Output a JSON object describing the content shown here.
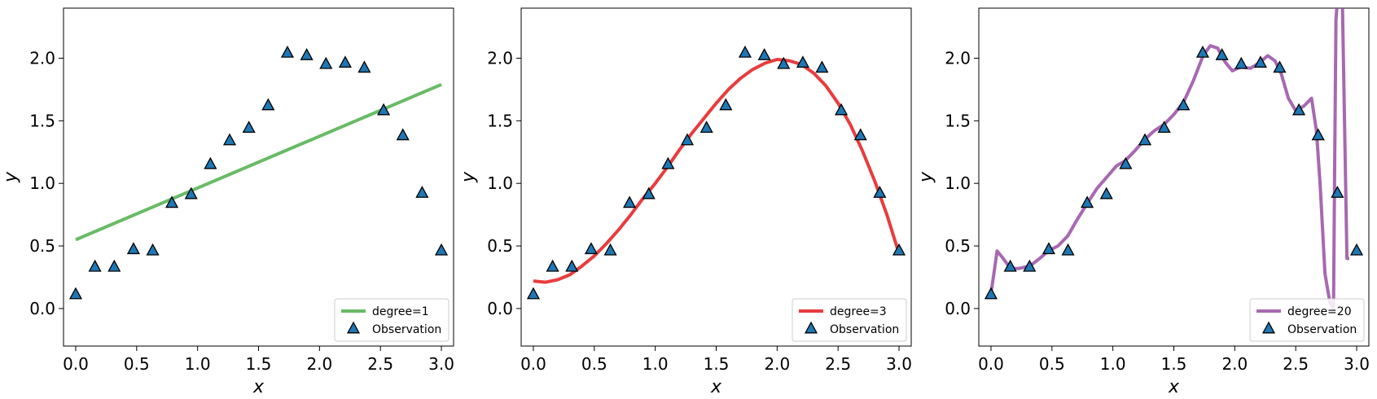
{
  "chart_data": [
    {
      "type": "line",
      "xlabel": "x",
      "ylabel": "y",
      "xlim": [
        -0.1,
        3.1
      ],
      "ylim": [
        -0.3,
        2.4
      ],
      "xticks": [
        "0.0",
        "0.5",
        "1.0",
        "1.5",
        "2.0",
        "2.5",
        "3.0"
      ],
      "yticks": [
        "0.0",
        "0.5",
        "1.0",
        "1.5",
        "2.0"
      ],
      "grid": false,
      "legend_position": "lower-right",
      "series": [
        {
          "name": "degree=1",
          "kind": "line",
          "color": "#4daf4a",
          "x": [
            0.0,
            3.0
          ],
          "y": [
            0.55,
            1.79
          ]
        },
        {
          "name": "Observation",
          "kind": "scatter",
          "marker": "triangle",
          "color": "#1f77b4",
          "x": [
            0.0,
            0.158,
            0.316,
            0.474,
            0.632,
            0.789,
            0.947,
            1.105,
            1.263,
            1.421,
            1.579,
            1.737,
            1.895,
            2.053,
            2.211,
            2.368,
            2.526,
            2.684,
            2.842,
            3.0
          ],
          "y": [
            0.11,
            0.33,
            0.33,
            0.47,
            0.46,
            0.84,
            0.91,
            1.15,
            1.34,
            1.44,
            1.62,
            2.04,
            2.02,
            1.95,
            1.96,
            1.92,
            1.58,
            1.38,
            0.92,
            0.46
          ]
        }
      ]
    },
    {
      "type": "line",
      "xlabel": "x",
      "ylabel": "y",
      "xlim": [
        -0.1,
        3.1
      ],
      "ylim": [
        -0.3,
        2.4
      ],
      "xticks": [
        "0.0",
        "0.5",
        "1.0",
        "1.5",
        "2.0",
        "2.5",
        "3.0"
      ],
      "yticks": [
        "0.0",
        "0.5",
        "1.0",
        "1.5",
        "2.0"
      ],
      "grid": false,
      "legend_position": "lower-right",
      "series": [
        {
          "name": "degree=3",
          "kind": "line",
          "color": "#e41a1c",
          "x": [
            0.0,
            0.1,
            0.2,
            0.3,
            0.4,
            0.5,
            0.6,
            0.7,
            0.8,
            0.9,
            1.0,
            1.1,
            1.2,
            1.3,
            1.4,
            1.5,
            1.6,
            1.7,
            1.8,
            1.9,
            2.0,
            2.1,
            2.2,
            2.3,
            2.4,
            2.5,
            2.6,
            2.7,
            2.8,
            2.9,
            3.0
          ],
          "y": [
            0.22,
            0.21,
            0.23,
            0.27,
            0.34,
            0.42,
            0.52,
            0.63,
            0.75,
            0.88,
            1.0,
            1.13,
            1.27,
            1.4,
            1.52,
            1.64,
            1.75,
            1.84,
            1.91,
            1.96,
            1.99,
            1.98,
            1.95,
            1.88,
            1.78,
            1.64,
            1.47,
            1.26,
            1.02,
            0.75,
            0.44
          ]
        },
        {
          "name": "Observation",
          "kind": "scatter",
          "marker": "triangle",
          "color": "#1f77b4",
          "x": [
            0.0,
            0.158,
            0.316,
            0.474,
            0.632,
            0.789,
            0.947,
            1.105,
            1.263,
            1.421,
            1.579,
            1.737,
            1.895,
            2.053,
            2.211,
            2.368,
            2.526,
            2.684,
            2.842,
            3.0
          ],
          "y": [
            0.11,
            0.33,
            0.33,
            0.47,
            0.46,
            0.84,
            0.91,
            1.15,
            1.34,
            1.44,
            1.62,
            2.04,
            2.02,
            1.95,
            1.96,
            1.92,
            1.58,
            1.38,
            0.92,
            0.46
          ]
        }
      ]
    },
    {
      "type": "line",
      "xlabel": "x",
      "ylabel": "y",
      "xlim": [
        -0.1,
        3.1
      ],
      "ylim": [
        -0.3,
        2.4
      ],
      "xticks": [
        "0.0",
        "0.5",
        "1.0",
        "1.5",
        "2.0",
        "2.5",
        "3.0"
      ],
      "yticks": [
        "0.0",
        "0.5",
        "1.0",
        "1.5",
        "2.0"
      ],
      "grid": false,
      "legend_position": "lower-right",
      "series": [
        {
          "name": "degree=20",
          "kind": "line",
          "color": "#984ea3",
          "x": [
            0.0,
            0.05,
            0.1,
            0.16,
            0.23,
            0.32,
            0.4,
            0.47,
            0.55,
            0.63,
            0.7,
            0.79,
            0.87,
            0.95,
            1.03,
            1.1,
            1.18,
            1.26,
            1.34,
            1.42,
            1.5,
            1.58,
            1.66,
            1.74,
            1.8,
            1.86,
            1.92,
            1.98,
            2.05,
            2.13,
            2.21,
            2.27,
            2.33,
            2.38,
            2.44,
            2.5,
            2.57,
            2.63,
            2.67,
            2.7,
            2.74,
            2.78,
            2.81,
            2.82,
            2.83,
            2.85,
            2.88,
            2.9,
            2.92,
            2.94
          ],
          "y": [
            0.12,
            0.46,
            0.4,
            0.32,
            0.32,
            0.34,
            0.4,
            0.46,
            0.5,
            0.58,
            0.7,
            0.84,
            0.96,
            1.05,
            1.14,
            1.18,
            1.26,
            1.35,
            1.42,
            1.47,
            1.55,
            1.65,
            1.82,
            2.02,
            2.1,
            2.08,
            1.97,
            1.9,
            1.93,
            1.92,
            1.97,
            2.02,
            1.98,
            1.88,
            1.68,
            1.58,
            1.62,
            1.68,
            1.42,
            1.0,
            0.28,
            0.05,
            0.0,
            1.2,
            2.3,
            2.6,
            2.6,
            1.5,
            0.4,
            0.4
          ]
        },
        {
          "name": "Observation",
          "kind": "scatter",
          "marker": "triangle",
          "color": "#1f77b4",
          "x": [
            0.0,
            0.158,
            0.316,
            0.474,
            0.632,
            0.789,
            0.947,
            1.105,
            1.263,
            1.421,
            1.579,
            1.737,
            1.895,
            2.053,
            2.211,
            2.368,
            2.526,
            2.684,
            2.842,
            3.0
          ],
          "y": [
            0.11,
            0.33,
            0.33,
            0.47,
            0.46,
            0.84,
            0.91,
            1.15,
            1.34,
            1.44,
            1.62,
            2.04,
            2.02,
            1.95,
            1.96,
            1.92,
            1.58,
            1.38,
            0.92,
            0.46
          ]
        }
      ]
    }
  ]
}
